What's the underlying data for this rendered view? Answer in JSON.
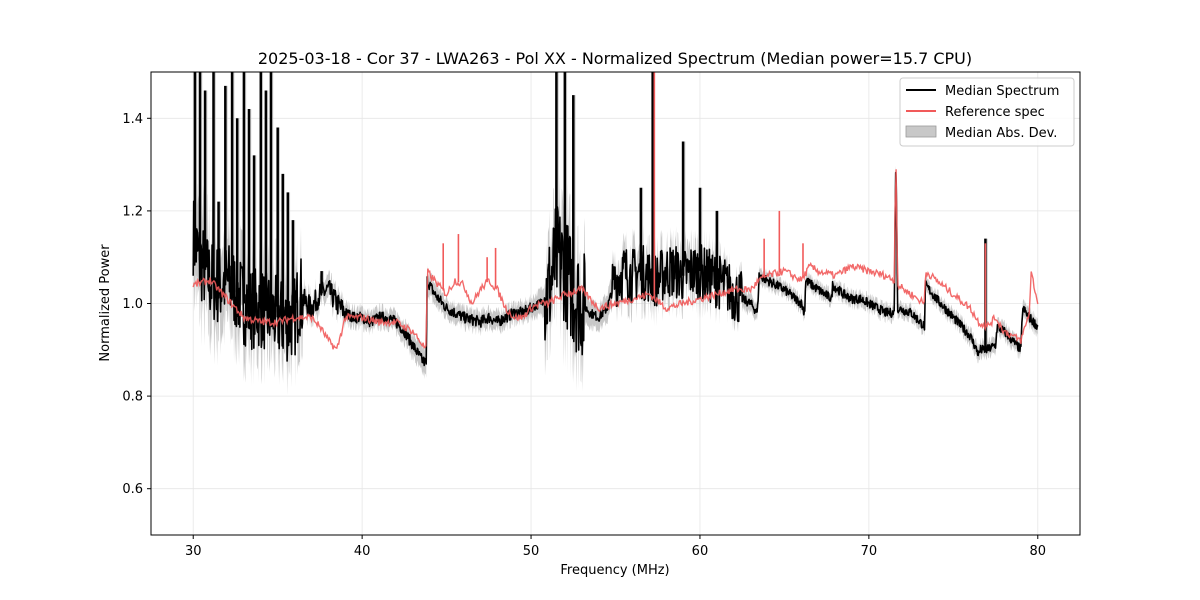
{
  "chart_data": {
    "type": "line",
    "title": "2025-03-18 - Cor 37 - LWA263 - Pol XX - Normalized Spectrum (Median power=15.7 CPU)",
    "xlabel": "Frequency (MHz)",
    "ylabel": "Normalized Power",
    "xlim": [
      27.5,
      82.5
    ],
    "ylim": [
      0.5,
      1.5
    ],
    "xticks": [
      30,
      40,
      50,
      60,
      70,
      80
    ],
    "yticks": [
      0.6,
      0.8,
      1.0,
      1.2,
      1.4
    ],
    "xtick_labels": [
      "30",
      "40",
      "50",
      "60",
      "70",
      "80"
    ],
    "ytick_labels": [
      "0.6",
      "0.8",
      "1.0",
      "1.2",
      "1.4"
    ],
    "grid": true,
    "legend_position": "top-right",
    "legend": [
      "Median Spectrum",
      "Reference spec",
      "Median Abs. Dev."
    ],
    "colors": {
      "median": "#000000",
      "reference": "#f15a5a",
      "mad": "#c8c8c8"
    },
    "series": [
      {
        "name": "Median Spectrum",
        "x": [
          30.0,
          30.3,
          30.6,
          31.0,
          31.5,
          32.0,
          32.5,
          33.0,
          33.5,
          34.0,
          34.5,
          35.0,
          35.5,
          36.0,
          36.3,
          36.7,
          37.0,
          37.5,
          38.0,
          38.5,
          39.0,
          39.5,
          40.0,
          40.5,
          41.0,
          41.5,
          42.0,
          42.5,
          43.0,
          43.5,
          43.8,
          43.85,
          44.3,
          45.0,
          46.0,
          47.0,
          47.5,
          48.0,
          48.5,
          49.0,
          49.5,
          50.0,
          50.5,
          51.0,
          51.5,
          52.0,
          52.5,
          53.0,
          53.5,
          54.0,
          54.5,
          55.0,
          55.5,
          56.0,
          56.5,
          57.0,
          57.5,
          58.0,
          58.5,
          59.0,
          59.5,
          60.0,
          60.5,
          61.0,
          61.5,
          62.0,
          62.5,
          63.0,
          63.4,
          63.5,
          64.0,
          65.0,
          66.0,
          66.2,
          66.25,
          67.0,
          67.8,
          67.85,
          68.5,
          69.0,
          69.5,
          70.0,
          70.5,
          71.0,
          71.5,
          71.6,
          71.7,
          72.5,
          73.3,
          73.35,
          74.0,
          75.0,
          76.0,
          76.5,
          76.6,
          77.0,
          77.5,
          77.6,
          78.0,
          78.5,
          79.0,
          79.1,
          79.5,
          80.0
        ],
        "values": [
          1.15,
          1.1,
          1.08,
          1.05,
          1.04,
          1.05,
          1.03,
          1.0,
          0.99,
          0.99,
          0.98,
          0.97,
          0.96,
          0.97,
          1.02,
          1.0,
          0.99,
          1.02,
          1.03,
          1.0,
          0.98,
          0.97,
          0.97,
          0.96,
          0.97,
          0.97,
          0.96,
          0.94,
          0.91,
          0.88,
          0.87,
          1.05,
          1.02,
          0.99,
          0.97,
          0.96,
          0.97,
          0.96,
          0.97,
          0.98,
          0.98,
          0.99,
          1.0,
          1.02,
          1.1,
          1.08,
          1.02,
          1.0,
          0.98,
          0.97,
          0.99,
          1.05,
          1.07,
          1.06,
          1.07,
          1.06,
          1.05,
          1.07,
          1.07,
          1.06,
          1.07,
          1.07,
          1.06,
          1.05,
          1.04,
          1.02,
          1.01,
          1.0,
          0.98,
          1.06,
          1.05,
          1.03,
          1.0,
          0.98,
          1.05,
          1.03,
          1.01,
          1.04,
          1.02,
          1.01,
          1.01,
          1.0,
          0.99,
          0.98,
          0.98,
          1.33,
          0.99,
          0.98,
          0.95,
          1.04,
          1.01,
          0.97,
          0.93,
          0.89,
          0.9,
          0.9,
          0.91,
          0.95,
          0.94,
          0.92,
          0.9,
          0.99,
          0.97,
          0.95
        ],
        "spikes": [
          [
            30.1,
            1.5
          ],
          [
            30.4,
            1.5
          ],
          [
            30.7,
            1.46
          ],
          [
            31.2,
            1.5
          ],
          [
            31.5,
            1.22
          ],
          [
            31.9,
            1.47
          ],
          [
            32.3,
            1.5
          ],
          [
            32.6,
            1.4
          ],
          [
            33.0,
            1.5
          ],
          [
            33.3,
            1.42
          ],
          [
            33.6,
            1.32
          ],
          [
            34.0,
            1.5
          ],
          [
            34.3,
            1.46
          ],
          [
            34.6,
            1.5
          ],
          [
            35.0,
            1.38
          ],
          [
            35.3,
            1.28
          ],
          [
            35.6,
            1.24
          ],
          [
            35.9,
            1.18
          ],
          [
            37.6,
            1.07
          ],
          [
            51.5,
            1.5
          ],
          [
            52.0,
            1.5
          ],
          [
            52.5,
            1.45
          ],
          [
            56.5,
            1.25
          ],
          [
            57.2,
            1.5
          ],
          [
            59.0,
            1.35
          ],
          [
            60.0,
            1.25
          ],
          [
            61.0,
            1.2
          ],
          [
            71.6,
            1.33
          ],
          [
            76.9,
            1.14
          ]
        ]
      },
      {
        "name": "Reference spec",
        "x": [
          30.0,
          31.0,
          32.0,
          33.0,
          34.0,
          35.0,
          36.0,
          37.0,
          37.5,
          38.0,
          38.5,
          39.0,
          40.0,
          41.0,
          42.0,
          43.0,
          43.8,
          43.85,
          44.5,
          45.0,
          45.5,
          46.0,
          46.5,
          47.0,
          47.5,
          48.0,
          48.5,
          49.0,
          49.5,
          50.0,
          50.5,
          51.0,
          52.0,
          53.0,
          54.0,
          55.0,
          56.0,
          57.0,
          58.0,
          59.0,
          60.0,
          61.0,
          62.0,
          63.0,
          63.5,
          64.0,
          65.0,
          66.0,
          66.5,
          67.0,
          68.0,
          69.0,
          70.0,
          71.0,
          71.5,
          71.6,
          71.7,
          72.5,
          73.3,
          73.35,
          74.0,
          75.0,
          76.0,
          76.5,
          77.0,
          77.5,
          78.0,
          79.0,
          79.5,
          79.6,
          80.0
        ],
        "values": [
          1.04,
          1.05,
          1.01,
          0.97,
          0.96,
          0.96,
          0.97,
          0.97,
          0.95,
          0.92,
          0.9,
          0.97,
          0.97,
          0.96,
          0.96,
          0.94,
          0.9,
          1.07,
          1.04,
          1.02,
          1.05,
          1.04,
          1.0,
          1.03,
          1.05,
          1.03,
          0.99,
          0.97,
          0.97,
          0.99,
          1.0,
          1.0,
          1.02,
          1.03,
          0.99,
          1.0,
          1.01,
          1.02,
          0.99,
          1.0,
          1.01,
          1.02,
          1.03,
          1.03,
          1.05,
          1.06,
          1.07,
          1.05,
          1.08,
          1.07,
          1.06,
          1.08,
          1.07,
          1.06,
          1.05,
          1.33,
          1.04,
          1.02,
          1.0,
          1.07,
          1.05,
          1.02,
          0.99,
          0.96,
          0.95,
          0.97,
          0.94,
          0.92,
          0.98,
          1.07,
          1.0
        ],
        "spikes": [
          [
            44.8,
            1.13
          ],
          [
            45.7,
            1.15
          ],
          [
            47.4,
            1.1
          ],
          [
            47.9,
            1.12
          ],
          [
            57.3,
            1.5
          ],
          [
            63.8,
            1.14
          ],
          [
            64.7,
            1.2
          ],
          [
            66.1,
            1.13
          ],
          [
            71.6,
            1.33
          ],
          [
            76.9,
            1.13
          ]
        ]
      },
      {
        "name": "Median Abs. Dev.",
        "x": [
          30.0,
          31.0,
          32.0,
          33.0,
          34.0,
          35.0,
          36.0,
          37.0,
          38.0,
          39.0,
          40.0,
          41.0,
          42.0,
          43.0,
          43.8,
          43.85,
          45.0,
          46.0,
          47.0,
          48.0,
          49.0,
          50.0,
          51.0,
          52.0,
          53.0,
          54.0,
          55.0,
          56.0,
          57.0,
          58.0,
          59.0,
          60.0,
          61.0,
          62.0,
          63.0,
          63.4,
          63.5,
          65.0,
          66.2,
          66.25,
          67.8,
          67.85,
          69.0,
          70.0,
          71.0,
          71.5,
          71.7,
          73.3,
          73.35,
          75.0,
          76.0,
          77.0,
          78.0,
          79.0,
          79.1,
          80.0
        ],
        "values": [
          0.05,
          0.05,
          0.04,
          0.03,
          0.03,
          0.03,
          0.02,
          0.02,
          0.02,
          0.015,
          0.015,
          0.015,
          0.015,
          0.02,
          0.025,
          0.02,
          0.015,
          0.015,
          0.015,
          0.015,
          0.015,
          0.015,
          0.03,
          0.05,
          0.03,
          0.02,
          0.03,
          0.04,
          0.04,
          0.04,
          0.04,
          0.04,
          0.03,
          0.02,
          0.015,
          0.012,
          0.012,
          0.01,
          0.01,
          0.01,
          0.01,
          0.01,
          0.01,
          0.01,
          0.01,
          0.01,
          0.01,
          0.01,
          0.01,
          0.01,
          0.012,
          0.012,
          0.012,
          0.012,
          0.012,
          0.012
        ]
      }
    ]
  }
}
